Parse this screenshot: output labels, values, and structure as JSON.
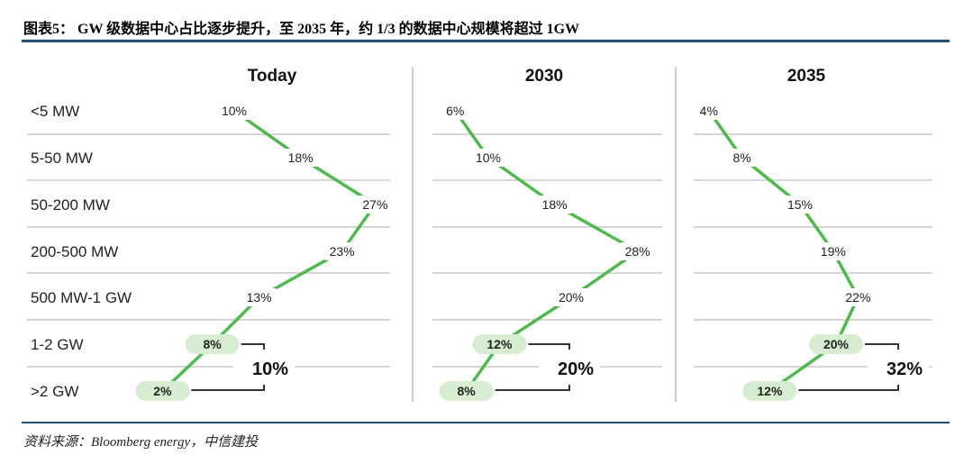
{
  "title": "图表5：  GW 级数据中心占比逐步提升，至 2035 年，约 1/3 的数据中心规模将超过 1GW",
  "source": "资料来源：Bloomberg energy，中信建投",
  "colors": {
    "line": "#4cbb4c",
    "pill": "#d6edd2",
    "rule": "#1f4e79",
    "grid": "#c8c8c8"
  },
  "chart_data": [
    {
      "type": "line",
      "title": "Today",
      "categories": [
        "<5 MW",
        "5-50 MW",
        "50-200 MW",
        "200-500 MW",
        "500 MW-1 GW",
        "1-2 GW",
        ">2 GW"
      ],
      "values": [
        10,
        18,
        27,
        23,
        13,
        8,
        2
      ],
      "labels": [
        "10%",
        "18%",
        "27%",
        "23%",
        "13%",
        "8%",
        "2%"
      ],
      "highlighted": [
        5,
        6
      ],
      "gw_total": "10%"
    },
    {
      "type": "line",
      "title": "2030",
      "categories": [
        "<5 MW",
        "5-50 MW",
        "50-200 MW",
        "200-500 MW",
        "500 MW-1 GW",
        "1-2 GW",
        ">2 GW"
      ],
      "values": [
        6,
        10,
        18,
        28,
        20,
        12,
        8
      ],
      "labels": [
        "6%",
        "10%",
        "18%",
        "28%",
        "20%",
        "12%",
        "8%"
      ],
      "highlighted": [
        5,
        6
      ],
      "gw_total": "20%"
    },
    {
      "type": "line",
      "title": "2035",
      "categories": [
        "<5 MW",
        "5-50 MW",
        "50-200 MW",
        "200-500 MW",
        "500 MW-1 GW",
        "1-2 GW",
        ">2 GW"
      ],
      "values": [
        4,
        8,
        15,
        19,
        22,
        20,
        12
      ],
      "labels": [
        "4%",
        "8%",
        "15%",
        "19%",
        "22%",
        "20%",
        "12%"
      ],
      "highlighted": [
        5,
        6
      ],
      "gw_total": "32%"
    }
  ]
}
